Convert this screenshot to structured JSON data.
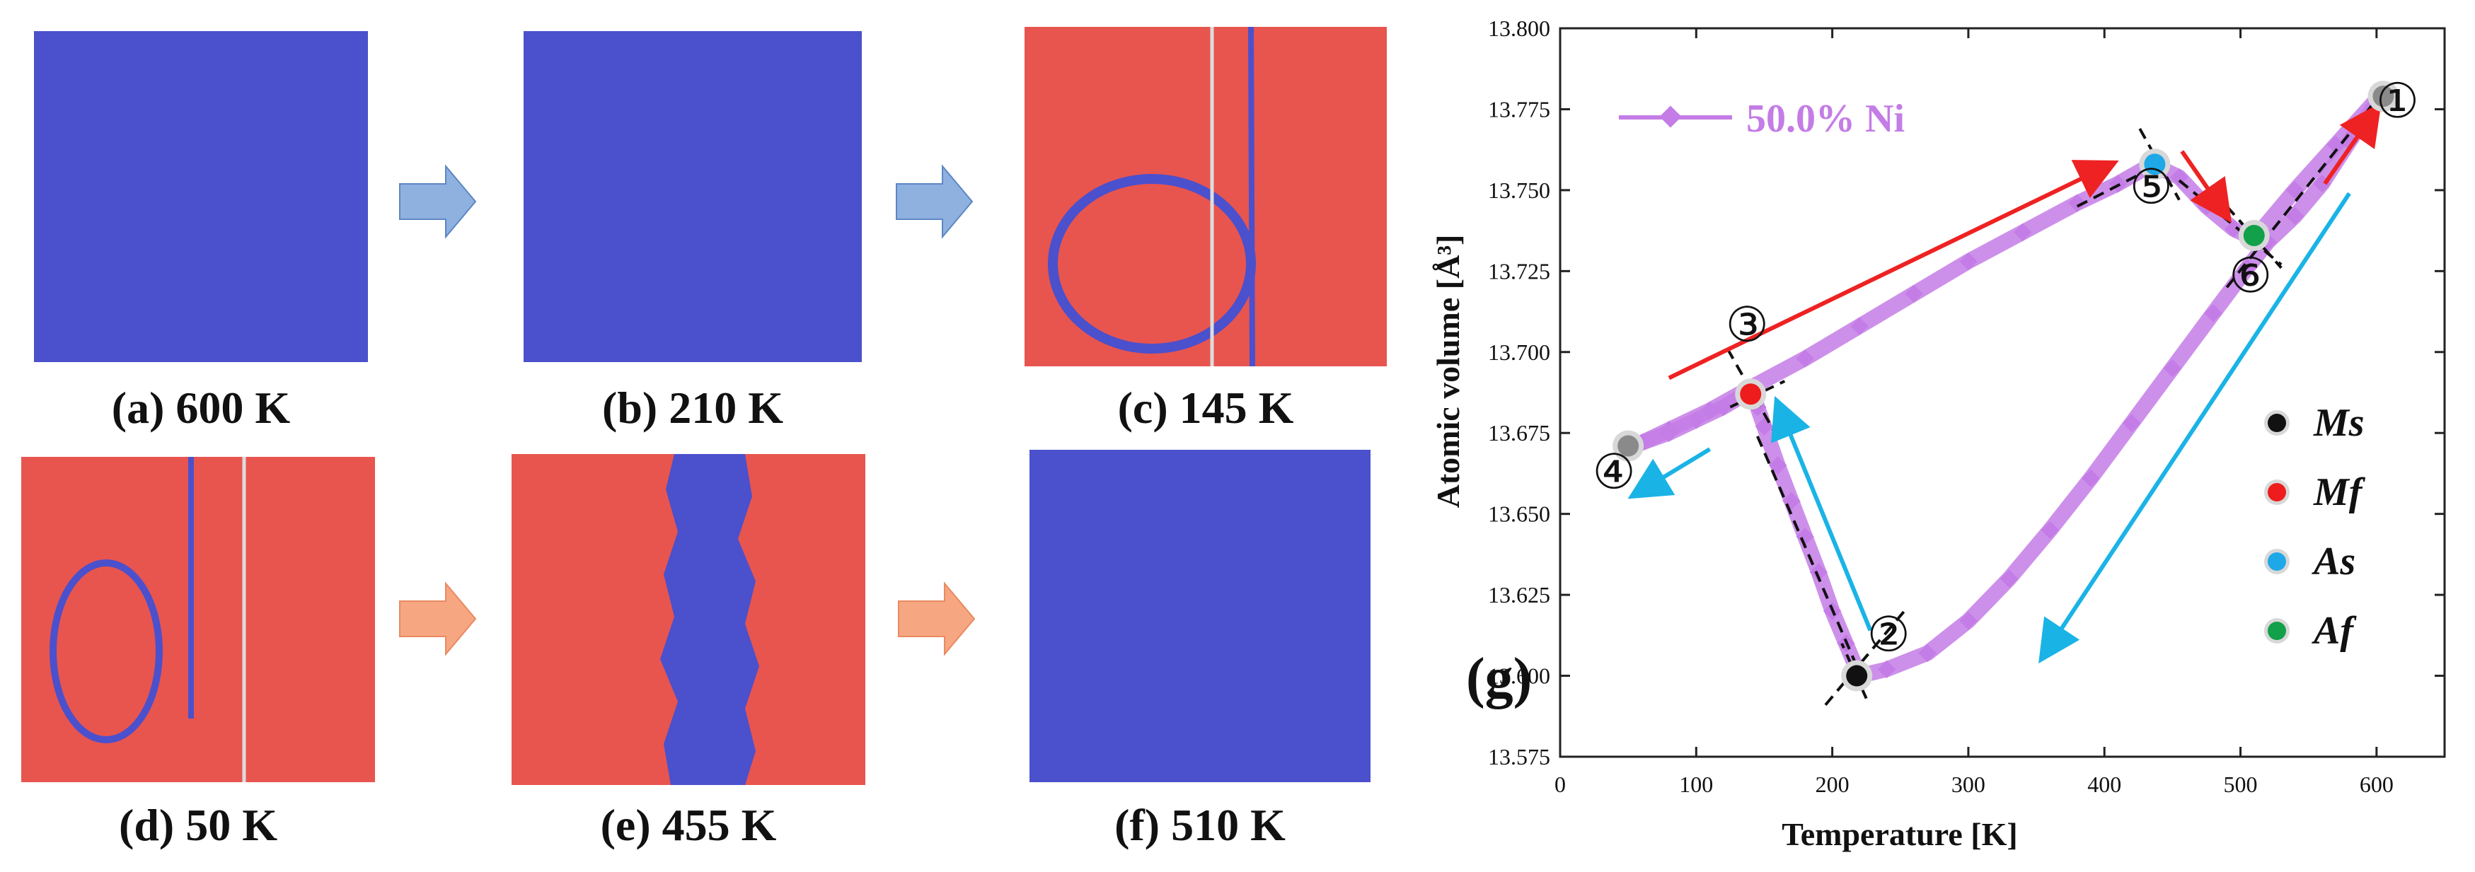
{
  "panels": [
    {
      "id": "a",
      "caption": "(a) 600 K",
      "color": "blue"
    },
    {
      "id": "b",
      "caption": "(b) 210 K",
      "color": "blue"
    },
    {
      "id": "c",
      "caption": "(c) 145 K",
      "color": "red"
    },
    {
      "id": "d",
      "caption": "(d) 50 K",
      "color": "red"
    },
    {
      "id": "e",
      "caption": "(e) 455 K",
      "color": "red"
    },
    {
      "id": "f",
      "caption": "(f) 510 K",
      "color": "blue"
    }
  ],
  "colors": {
    "austenite": "#4b50cc",
    "martensite": "#e8554f",
    "arrow_cool": "#8fb1e0",
    "arrow_heat": "#f7a682",
    "curve": "#c47ce6",
    "red_arrow": "#ee2222",
    "cyan_arrow": "#1ab3e6",
    "Ms": "#111111",
    "Mf": "#ee1c1c",
    "As": "#1ea8e8",
    "Af": "#12a04a"
  },
  "chart_data": {
    "type": "line",
    "panel_label": "(g)",
    "xlabel": "Temperature [K]",
    "ylabel": "Atomic volume [Å³]",
    "xlim": [
      0,
      650
    ],
    "ylim": [
      13.575,
      13.8
    ],
    "xticks": [
      0,
      100,
      200,
      300,
      400,
      500,
      600
    ],
    "yticks": [
      13.575,
      13.6,
      13.625,
      13.65,
      13.675,
      13.7,
      13.725,
      13.75,
      13.775,
      13.8
    ],
    "ytick_labels": [
      "13.575",
      "13.600",
      "13.625",
      "13.650",
      "13.675",
      "13.700",
      "13.725",
      "13.750",
      "13.775",
      "13.800"
    ],
    "series": [
      {
        "name": "50.0% Ni",
        "cooling": {
          "x": [
            600,
            580,
            560,
            540,
            520,
            505,
            480,
            450,
            420,
            390,
            360,
            330,
            300,
            270,
            240,
            220
          ],
          "y": [
            13.777,
            13.765,
            13.752,
            13.742,
            13.734,
            13.726,
            13.712,
            13.695,
            13.678,
            13.661,
            13.645,
            13.63,
            13.617,
            13.607,
            13.602,
            13.6
          ]
        },
        "drop": {
          "x": [
            220,
            210,
            200,
            190,
            180,
            170,
            160,
            150,
            145,
            140
          ],
          "y": [
            13.6,
            13.61,
            13.62,
            13.632,
            13.643,
            13.654,
            13.665,
            13.677,
            13.683,
            13.688
          ]
        },
        "cool_low": {
          "x": [
            140,
            120,
            100,
            80,
            60,
            50
          ],
          "y": [
            13.688,
            13.683,
            13.679,
            13.675,
            13.672,
            13.67
          ]
        },
        "heating": {
          "x": [
            50,
            80,
            110,
            140,
            180,
            220,
            260,
            300,
            340,
            380,
            410,
            435,
            455,
            475,
            495,
            510,
            540,
            570,
            600
          ],
          "y": [
            13.67,
            13.676,
            13.682,
            13.689,
            13.698,
            13.708,
            13.718,
            13.728,
            13.737,
            13.746,
            13.752,
            13.758,
            13.754,
            13.745,
            13.738,
            13.735,
            13.75,
            13.764,
            13.778
          ]
        }
      }
    ],
    "points": [
      {
        "num": "①",
        "x": 605,
        "y": 13.779,
        "color": "#8a8a8a",
        "label_dx": 20,
        "label_dy": 30
      },
      {
        "num": "②",
        "x": 218,
        "y": 13.6,
        "color": "#111111",
        "label_dx": 45,
        "label_dy": -35
      },
      {
        "num": "③",
        "x": 140,
        "y": 13.687,
        "color": "#ee1c1c",
        "label_dx": -5,
        "label_dy": -75
      },
      {
        "num": "④",
        "x": 50,
        "y": 13.671,
        "color": "#8a8a8a",
        "label_dx": -20,
        "label_dy": 60
      },
      {
        "num": "⑤",
        "x": 437,
        "y": 13.758,
        "color": "#1ea8e8",
        "label_dx": -5,
        "label_dy": 55
      },
      {
        "num": "⑥",
        "x": 510,
        "y": 13.736,
        "color": "#12a04a",
        "label_dx": -5,
        "label_dy": 80
      }
    ],
    "legend_points": [
      {
        "label": "Ms",
        "color": "#111111"
      },
      {
        "label": "Mf",
        "color": "#ee1c1c"
      },
      {
        "label": "As",
        "color": "#1ea8e8"
      },
      {
        "label": "Af",
        "color": "#12a04a"
      }
    ],
    "arrows": [
      {
        "color": "red",
        "from": [
          80,
          13.692
        ],
        "to": [
          405,
          13.758
        ]
      },
      {
        "color": "red",
        "from": [
          562,
          13.752
        ],
        "to": [
          600,
          13.775
        ]
      },
      {
        "color": "red",
        "from": [
          457,
          13.762
        ],
        "to": [
          490,
          13.742
        ]
      },
      {
        "color": "cyan",
        "from": [
          580,
          13.749
        ],
        "to": [
          355,
          13.606
        ]
      },
      {
        "color": "cyan",
        "from": [
          228,
          13.614
        ],
        "to": [
          160,
          13.684
        ]
      },
      {
        "color": "cyan",
        "from": [
          110,
          13.67
        ],
        "to": [
          55,
          13.656
        ]
      }
    ],
    "dashed_tangents": [
      {
        "from": [
          125,
          13.683
        ],
        "to": [
          165,
          13.691
        ]
      },
      {
        "from": [
          123,
          13.701
        ],
        "to": [
          162,
          13.672
        ]
      },
      {
        "from": [
          145,
          13.674
        ],
        "to": [
          220,
          13.601
        ]
      },
      {
        "from": [
          195,
          13.591
        ],
        "to": [
          255,
          13.621
        ]
      },
      {
        "from": [
          225,
          13.593
        ],
        "to": [
          207,
          13.61
        ]
      },
      {
        "from": [
          380,
          13.745
        ],
        "to": [
          445,
          13.759
        ]
      },
      {
        "from": [
          426,
          13.769
        ],
        "to": [
          455,
          13.747
        ]
      },
      {
        "from": [
          455,
          13.753
        ],
        "to": [
          530,
          13.727
        ]
      },
      {
        "from": [
          490,
          13.745
        ],
        "to": [
          530,
          13.726
        ]
      },
      {
        "from": [
          490,
          13.72
        ],
        "to": [
          600,
          13.778
        ]
      }
    ]
  }
}
